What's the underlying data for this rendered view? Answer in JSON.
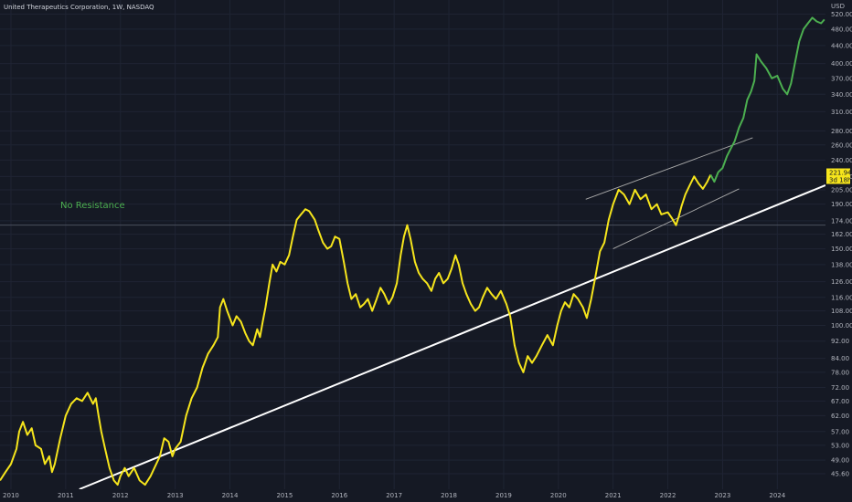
{
  "chart_data": {
    "type": "line",
    "title": "United Therapeutics Corporation, 1W, NASDAQ",
    "currency_label": "USD",
    "annotation": "No Resistance",
    "price_badge": {
      "price": "221.94",
      "countdown": "3d 18h",
      "color": "#f6e51c"
    },
    "y_scale": "log",
    "ylim": [
      42,
      560
    ],
    "xlim": [
      2009.8,
      2024.88
    ],
    "y_ticks": [
      "520.00",
      "480.00",
      "440.00",
      "400.00",
      "370.00",
      "340.00",
      "310.00",
      "280.00",
      "260.00",
      "240.00",
      "220.00",
      "205.00",
      "190.00",
      "174.00",
      "162.00",
      "150.00",
      "138.00",
      "126.00",
      "116.00",
      "108.00",
      "100.00",
      "92.00",
      "84.00",
      "78.00",
      "72.00",
      "67.00",
      "62.00",
      "57.00",
      "53.00",
      "49.00",
      "45.60"
    ],
    "x_ticks": [
      "2010",
      "2011",
      "2012",
      "2013",
      "2014",
      "2015",
      "2016",
      "2017",
      "2018",
      "2019",
      "2020",
      "2021",
      "2022",
      "2023",
      "2024"
    ],
    "grid": true,
    "horizontal_line": 170,
    "series": [
      {
        "color": "#f6e51c",
        "points": [
          [
            2009.8,
            44
          ],
          [
            2009.9,
            46
          ],
          [
            2010.0,
            48
          ],
          [
            2010.1,
            52
          ],
          [
            2010.15,
            57
          ],
          [
            2010.22,
            60
          ],
          [
            2010.3,
            56
          ],
          [
            2010.38,
            58
          ],
          [
            2010.45,
            53
          ],
          [
            2010.55,
            52
          ],
          [
            2010.62,
            48
          ],
          [
            2010.7,
            50
          ],
          [
            2010.75,
            46
          ],
          [
            2010.8,
            48
          ],
          [
            2010.9,
            55
          ],
          [
            2011.0,
            62
          ],
          [
            2011.1,
            66
          ],
          [
            2011.2,
            68
          ],
          [
            2011.3,
            67
          ],
          [
            2011.4,
            70
          ],
          [
            2011.5,
            66
          ],
          [
            2011.55,
            68
          ],
          [
            2011.6,
            62
          ],
          [
            2011.65,
            57
          ],
          [
            2011.72,
            52
          ],
          [
            2011.8,
            47
          ],
          [
            2011.88,
            44
          ],
          [
            2011.95,
            43
          ],
          [
            2012.0,
            45
          ],
          [
            2012.08,
            47
          ],
          [
            2012.15,
            45
          ],
          [
            2012.25,
            47
          ],
          [
            2012.35,
            44
          ],
          [
            2012.45,
            43
          ],
          [
            2012.55,
            45
          ],
          [
            2012.62,
            47
          ],
          [
            2012.72,
            50
          ],
          [
            2012.8,
            55
          ],
          [
            2012.88,
            54
          ],
          [
            2012.95,
            50
          ],
          [
            2013.0,
            52
          ],
          [
            2013.1,
            54
          ],
          [
            2013.2,
            62
          ],
          [
            2013.3,
            68
          ],
          [
            2013.4,
            72
          ],
          [
            2013.5,
            80
          ],
          [
            2013.6,
            86
          ],
          [
            2013.7,
            90
          ],
          [
            2013.78,
            94
          ],
          [
            2013.82,
            110
          ],
          [
            2013.88,
            115
          ],
          [
            2013.95,
            108
          ],
          [
            2014.05,
            100
          ],
          [
            2014.12,
            105
          ],
          [
            2014.2,
            102
          ],
          [
            2014.28,
            96
          ],
          [
            2014.35,
            92
          ],
          [
            2014.42,
            90
          ],
          [
            2014.5,
            98
          ],
          [
            2014.55,
            94
          ],
          [
            2014.6,
            102
          ],
          [
            2014.65,
            110
          ],
          [
            2014.72,
            125
          ],
          [
            2014.78,
            138
          ],
          [
            2014.85,
            133
          ],
          [
            2014.92,
            140
          ],
          [
            2015.0,
            138
          ],
          [
            2015.08,
            145
          ],
          [
            2015.15,
            160
          ],
          [
            2015.22,
            175
          ],
          [
            2015.3,
            180
          ],
          [
            2015.38,
            185
          ],
          [
            2015.45,
            183
          ],
          [
            2015.55,
            175
          ],
          [
            2015.62,
            165
          ],
          [
            2015.7,
            155
          ],
          [
            2015.78,
            150
          ],
          [
            2015.85,
            152
          ],
          [
            2015.92,
            160
          ],
          [
            2016.0,
            158
          ],
          [
            2016.08,
            140
          ],
          [
            2016.15,
            125
          ],
          [
            2016.22,
            115
          ],
          [
            2016.3,
            118
          ],
          [
            2016.38,
            110
          ],
          [
            2016.45,
            112
          ],
          [
            2016.52,
            115
          ],
          [
            2016.6,
            108
          ],
          [
            2016.68,
            115
          ],
          [
            2016.75,
            122
          ],
          [
            2016.82,
            118
          ],
          [
            2016.9,
            112
          ],
          [
            2016.97,
            116
          ],
          [
            2017.05,
            125
          ],
          [
            2017.12,
            145
          ],
          [
            2017.18,
            160
          ],
          [
            2017.24,
            170
          ],
          [
            2017.3,
            158
          ],
          [
            2017.38,
            140
          ],
          [
            2017.45,
            132
          ],
          [
            2017.52,
            128
          ],
          [
            2017.6,
            125
          ],
          [
            2017.68,
            120
          ],
          [
            2017.75,
            128
          ],
          [
            2017.82,
            132
          ],
          [
            2017.9,
            125
          ],
          [
            2017.98,
            128
          ],
          [
            2018.05,
            135
          ],
          [
            2018.12,
            145
          ],
          [
            2018.18,
            138
          ],
          [
            2018.25,
            125
          ],
          [
            2018.32,
            118
          ],
          [
            2018.4,
            112
          ],
          [
            2018.48,
            108
          ],
          [
            2018.55,
            110
          ],
          [
            2018.62,
            116
          ],
          [
            2018.7,
            122
          ],
          [
            2018.78,
            118
          ],
          [
            2018.86,
            115
          ],
          [
            2018.95,
            120
          ],
          [
            2019.05,
            112
          ],
          [
            2019.12,
            105
          ],
          [
            2019.2,
            90
          ],
          [
            2019.28,
            82
          ],
          [
            2019.36,
            78
          ],
          [
            2019.44,
            85
          ],
          [
            2019.52,
            82
          ],
          [
            2019.6,
            85
          ],
          [
            2019.7,
            90
          ],
          [
            2019.8,
            95
          ],
          [
            2019.9,
            90
          ],
          [
            2019.98,
            100
          ],
          [
            2020.05,
            108
          ],
          [
            2020.12,
            113
          ],
          [
            2020.2,
            110
          ],
          [
            2020.28,
            118
          ],
          [
            2020.36,
            115
          ],
          [
            2020.45,
            110
          ],
          [
            2020.52,
            104
          ],
          [
            2020.6,
            115
          ],
          [
            2020.68,
            130
          ],
          [
            2020.76,
            148
          ],
          [
            2020.84,
            155
          ],
          [
            2020.92,
            175
          ],
          [
            2021.0,
            190
          ],
          [
            2021.1,
            205
          ],
          [
            2021.2,
            200
          ],
          [
            2021.3,
            190
          ],
          [
            2021.4,
            205
          ],
          [
            2021.5,
            195
          ],
          [
            2021.6,
            200
          ],
          [
            2021.7,
            185
          ],
          [
            2021.8,
            190
          ],
          [
            2021.88,
            180
          ],
          [
            2022.0,
            182
          ],
          [
            2022.08,
            176
          ],
          [
            2022.15,
            170
          ],
          [
            2022.2,
            178
          ],
          [
            2022.25,
            188
          ],
          [
            2022.32,
            200
          ],
          [
            2022.4,
            210
          ],
          [
            2022.48,
            220
          ],
          [
            2022.56,
            212
          ],
          [
            2022.64,
            206
          ],
          [
            2022.72,
            214
          ],
          [
            2022.78,
            222
          ]
        ]
      },
      {
        "color": "#4caf50",
        "points": [
          [
            2022.78,
            222
          ],
          [
            2022.85,
            214
          ],
          [
            2022.92,
            225
          ],
          [
            2023.0,
            230
          ],
          [
            2023.08,
            245
          ],
          [
            2023.15,
            255
          ],
          [
            2023.22,
            265
          ],
          [
            2023.3,
            285
          ],
          [
            2023.38,
            300
          ],
          [
            2023.45,
            330
          ],
          [
            2023.52,
            345
          ],
          [
            2023.58,
            365
          ],
          [
            2023.62,
            420
          ],
          [
            2023.7,
            405
          ],
          [
            2023.8,
            390
          ],
          [
            2023.9,
            370
          ],
          [
            2024.0,
            375
          ],
          [
            2024.1,
            350
          ],
          [
            2024.18,
            340
          ],
          [
            2024.25,
            360
          ],
          [
            2024.32,
            400
          ],
          [
            2024.4,
            450
          ],
          [
            2024.48,
            480
          ],
          [
            2024.56,
            495
          ],
          [
            2024.64,
            510
          ],
          [
            2024.72,
            500
          ],
          [
            2024.8,
            495
          ],
          [
            2024.86,
            505
          ]
        ]
      }
    ],
    "trendlines": [
      {
        "color": "#ffffff",
        "points": [
          [
            2011.25,
            42
          ],
          [
            2024.88,
            210
          ]
        ]
      },
      {
        "color": "#aaaaaa",
        "points": [
          [
            2020.5,
            195
          ],
          [
            2023.55,
            270
          ]
        ]
      },
      {
        "color": "#aaaaaa",
        "points": [
          [
            2021.0,
            150
          ],
          [
            2023.3,
            206
          ]
        ]
      }
    ]
  }
}
